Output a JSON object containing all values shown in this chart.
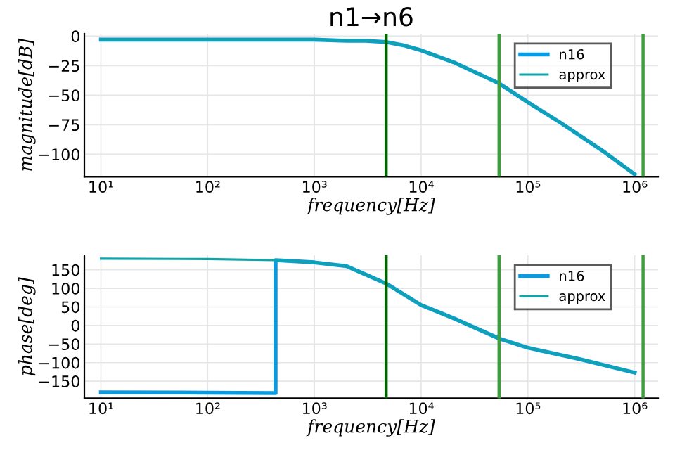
{
  "chart_data": [
    {
      "type": "line",
      "title": "n1→n6",
      "xlabel": "frequency[Hz]",
      "ylabel": "magnitude[dB]",
      "log": "x",
      "grid": true,
      "legend": "top right",
      "xlim": [
        7,
        1660000
      ],
      "ylim": [
        -119,
        2
      ],
      "xticks": [
        {
          "value": 10,
          "label": "10¹"
        },
        {
          "value": 100,
          "label": "10²"
        },
        {
          "value": 1000,
          "label": "10³"
        },
        {
          "value": 10000,
          "label": "10⁴"
        },
        {
          "value": 100000,
          "label": "10⁵"
        },
        {
          "value": 1000000,
          "label": "10⁶"
        }
      ],
      "yticks": [
        0,
        {
          "value": -25,
          "label": "−25"
        },
        {
          "value": -50,
          "label": "−50"
        },
        {
          "value": -75,
          "label": "−75"
        },
        {
          "value": -100,
          "label": "−100"
        }
      ],
      "x": [
        10,
        100,
        1000,
        2000,
        3000,
        4700,
        7000,
        10000,
        20000,
        53700,
        100000,
        200000,
        500000,
        1000000
      ],
      "series": [
        {
          "name": "n16",
          "color": "#0a9ae0",
          "values": [
            -3,
            -3,
            -3,
            -4,
            -4,
            -5,
            -8,
            -12,
            -22,
            -40,
            -56,
            -73,
            -97,
            -117
          ]
        },
        {
          "name": "approx",
          "color": "#10a3a8",
          "values": [
            -3,
            -3,
            -3,
            -4,
            -4,
            -5,
            -8,
            -12,
            -22,
            -40,
            -56,
            -73,
            -97,
            -117
          ]
        }
      ],
      "ref_lines": [
        {
          "axis": "x",
          "value": 4700,
          "label": null,
          "color": "#006400"
        },
        {
          "axis": "x",
          "value": 53700,
          "label": null,
          "color": "#3ca03c"
        },
        {
          "axis": "x",
          "value": 1200000,
          "label": null,
          "color": "#3ca03c"
        }
      ]
    },
    {
      "type": "line",
      "xlabel": "frequency[Hz]",
      "ylabel": "phase[deg]",
      "log": "x",
      "grid": true,
      "legend": "top right",
      "xlim": [
        7,
        1660000
      ],
      "ylim": [
        -196,
        189
      ],
      "xticks": [
        {
          "value": 10,
          "label": "10¹"
        },
        {
          "value": 100,
          "label": "10²"
        },
        {
          "value": 1000,
          "label": "10³"
        },
        {
          "value": 10000,
          "label": "10⁴"
        },
        {
          "value": 100000,
          "label": "10⁵"
        },
        {
          "value": 1000000,
          "label": "10⁶"
        }
      ],
      "yticks": [
        150,
        100,
        50,
        0,
        {
          "value": -50,
          "label": "−50"
        },
        {
          "value": -100,
          "label": "−100"
        },
        {
          "value": -150,
          "label": "−150"
        }
      ],
      "series": [
        {
          "name": "n16",
          "color": "#0a9ae0",
          "x": [
            10,
            100,
            433,
            433,
            1000,
            2000,
            4700,
            10000,
            20000,
            53700,
            100000,
            300000,
            1000000
          ],
          "values": [
            -180,
            -181,
            -182,
            176,
            170,
            160,
            113,
            55,
            20,
            -35,
            -60,
            -90,
            -127
          ]
        },
        {
          "name": "approx",
          "color": "#10a3a8",
          "x": [
            10,
            100,
            433,
            1000,
            2000,
            4700,
            10000,
            20000,
            53700,
            100000,
            300000,
            1000000
          ],
          "values": [
            180,
            179,
            176,
            170,
            160,
            113,
            55,
            20,
            -35,
            -60,
            -90,
            -127
          ]
        }
      ],
      "ref_lines": [
        {
          "axis": "x",
          "value": 4700,
          "label": null,
          "color": "#006400"
        },
        {
          "axis": "x",
          "value": 53700,
          "label": null,
          "color": "#3ca03c"
        },
        {
          "axis": "x",
          "value": 1200000,
          "label": null,
          "color": "#3ca03c"
        }
      ]
    }
  ]
}
